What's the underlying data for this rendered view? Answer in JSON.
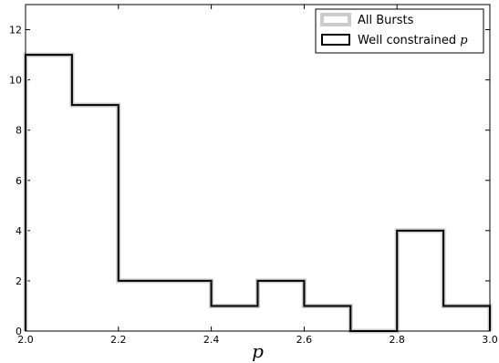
{
  "chart_data": {
    "type": "histogram",
    "xlabel": "p",
    "ylabel": "",
    "xlim": [
      2.0,
      3.0
    ],
    "ylim": [
      0,
      13
    ],
    "x_ticks": [
      "2.0",
      "2.2",
      "2.4",
      "2.6",
      "2.8",
      "3.0"
    ],
    "y_ticks": [
      "0",
      "2",
      "4",
      "6",
      "8",
      "10",
      "12"
    ],
    "bin_edges": [
      2.0,
      2.1,
      2.2,
      2.3,
      2.4,
      2.5,
      2.6,
      2.7,
      2.8,
      2.9,
      3.0
    ],
    "series": [
      {
        "name": "All Bursts",
        "style": "thick-gray-step",
        "color": "#cccccc",
        "values": [
          11,
          9,
          2,
          2,
          1,
          2,
          1,
          0,
          4,
          1
        ]
      },
      {
        "name": "Well constrained p",
        "style": "black-step",
        "color": "#000000",
        "values": [
          11,
          9,
          2,
          2,
          1,
          2,
          1,
          0,
          4,
          1
        ]
      }
    ],
    "legend": {
      "position": "top-right",
      "entries": [
        {
          "text": "All Bursts",
          "symbol_color": "#cccccc"
        },
        {
          "text": "Well constrained ",
          "italic_suffix": "p",
          "symbol_color": "#000000"
        }
      ]
    }
  }
}
